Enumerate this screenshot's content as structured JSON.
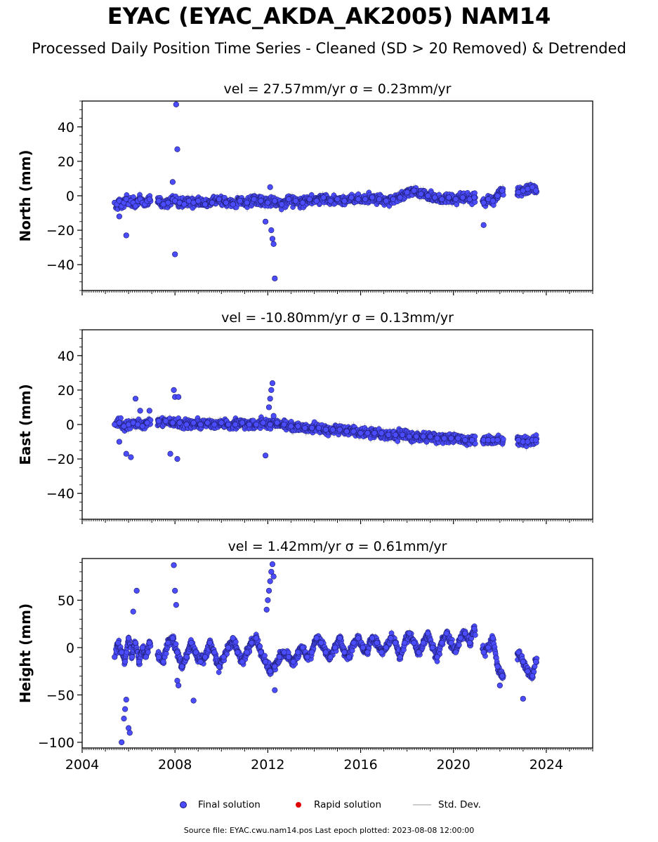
{
  "header": {
    "title": "EYAC (EYAC_AKDA_AK2005) NAM14",
    "subtitle": "Processed Daily Position Time Series - Cleaned (SD > 20 Removed) & Detrended"
  },
  "legend": {
    "final_label": "Final solution",
    "rapid_label": "Rapid solution",
    "std_label": "Std. Dev."
  },
  "footer": {
    "source": "Source file: EYAC.cwu.nam14.pos  Last epoch plotted: 2023-08-08 12:00:00"
  },
  "colors": {
    "final": "#4c4cff",
    "final_edge": "#1a1a66",
    "rapid": "#e00000",
    "std": "#cccccc"
  },
  "chart_data": [
    {
      "type": "scatter",
      "title": "vel = 27.57mm/yr   σ = 0.23mm/yr",
      "ylabel": "North (mm)",
      "xlim": [
        2004,
        2026
      ],
      "ylim": [
        -55,
        55
      ],
      "yticks": [
        -40,
        -20,
        0,
        20,
        40
      ],
      "xticks": [
        2004,
        2008,
        2012,
        2016,
        2020,
        2024
      ],
      "show_xtick_labels": false,
      "segments": [
        [
          2005.45,
          2006.95
        ],
        [
          2007.25,
          2020.95
        ],
        [
          2021.25,
          2022.15
        ],
        [
          2022.75,
          2023.6
        ]
      ],
      "series": [
        {
          "x": [
            2005.4,
            2005.5,
            2005.6,
            2005.7,
            2005.8,
            2005.9,
            2006.0,
            2006.1,
            2006.2,
            2006.3,
            2006.4,
            2006.5,
            2006.6,
            2006.7,
            2006.8,
            2006.9,
            2007.3,
            2007.5,
            2007.7,
            2007.9,
            2008.0,
            2008.2,
            2008.4,
            2008.6,
            2008.8,
            2009.0,
            2009.3,
            2009.6,
            2009.9,
            2010.2,
            2010.5,
            2010.8,
            2011.1,
            2011.4,
            2011.7,
            2012.0,
            2012.3,
            2012.6,
            2012.9,
            2013.2,
            2013.5,
            2013.8,
            2014.1,
            2014.4,
            2014.7,
            2015.0,
            2015.3,
            2015.6,
            2015.9,
            2016.2,
            2016.5,
            2016.8,
            2017.1,
            2017.4,
            2017.7,
            2018.0,
            2018.3,
            2018.6,
            2018.9,
            2019.2,
            2019.5,
            2019.8,
            2020.1,
            2020.4,
            2020.7,
            2020.9,
            2021.3,
            2021.5,
            2021.7,
            2021.9,
            2022.1,
            2022.8,
            2023.0,
            2023.2,
            2023.4,
            2023.55
          ],
          "y": [
            -4,
            -5,
            -3,
            -6,
            -4,
            -2,
            -5,
            -3,
            -4,
            -6,
            -3,
            -2,
            -4,
            -5,
            -3,
            -2,
            -3,
            -5,
            -4,
            -2,
            -3,
            -4,
            -5,
            -3,
            -4,
            -3,
            -5,
            -4,
            -2,
            -4,
            -5,
            -3,
            -4,
            -2,
            -3,
            -4,
            -3,
            -5,
            -2,
            -3,
            -4,
            -2,
            -3,
            -1,
            -3,
            -2,
            -3,
            -1,
            -2,
            -2,
            -1,
            -2,
            -3,
            -2,
            -1,
            2,
            3,
            1,
            0,
            -1,
            -2,
            -1,
            -2,
            -1,
            -2,
            -1,
            -4,
            -2,
            -3,
            0,
            3,
            2,
            3,
            4,
            5,
            3
          ]
        },
        {
          "x": [
            2005.6,
            2005.9,
            2007.9,
            2008.0,
            2008.05,
            2008.1,
            2011.9,
            2012.1,
            2012.15,
            2012.2,
            2012.25,
            2012.3,
            2021.3
          ],
          "y": [
            -12,
            -23,
            8,
            -34,
            53,
            27,
            -15,
            5,
            -20,
            -25,
            -28,
            -48,
            -17
          ]
        }
      ]
    },
    {
      "type": "scatter",
      "title": "vel = -10.80mm/yr   σ = 0.13mm/yr",
      "ylabel": "East (mm)",
      "xlim": [
        2004,
        2026
      ],
      "ylim": [
        -55,
        55
      ],
      "yticks": [
        -40,
        -20,
        0,
        20,
        40
      ],
      "xticks": [
        2004,
        2008,
        2012,
        2016,
        2020,
        2024
      ],
      "show_xtick_labels": false,
      "segments": [
        [
          2005.45,
          2006.95
        ],
        [
          2007.25,
          2020.95
        ],
        [
          2021.25,
          2022.15
        ],
        [
          2022.75,
          2023.6
        ]
      ],
      "series": [
        {
          "x": [
            2005.4,
            2005.6,
            2005.8,
            2006.0,
            2006.2,
            2006.4,
            2006.6,
            2006.8,
            2007.3,
            2007.6,
            2007.9,
            2008.2,
            2008.5,
            2008.8,
            2009.1,
            2009.4,
            2009.7,
            2010.0,
            2010.3,
            2010.6,
            2010.9,
            2011.2,
            2011.5,
            2011.8,
            2012.1,
            2012.4,
            2012.7,
            2013.0,
            2013.3,
            2013.6,
            2013.9,
            2014.2,
            2014.5,
            2014.8,
            2015.1,
            2015.4,
            2015.7,
            2016.0,
            2016.3,
            2016.6,
            2016.9,
            2017.2,
            2017.5,
            2017.8,
            2018.1,
            2018.4,
            2018.7,
            2019.0,
            2019.3,
            2019.6,
            2019.9,
            2020.2,
            2020.5,
            2020.8,
            2021.3,
            2021.5,
            2021.7,
            2021.9,
            2022.8,
            2023.0,
            2023.2,
            2023.4,
            2023.55
          ],
          "y": [
            0,
            1,
            -1,
            0,
            1,
            0,
            -1,
            1,
            2,
            2,
            1,
            1,
            0,
            1,
            0,
            1,
            0,
            1,
            0,
            0,
            1,
            0,
            0,
            1,
            0,
            1,
            0,
            -1,
            -1,
            -2,
            -2,
            -2,
            -3,
            -3,
            -3,
            -4,
            -4,
            -5,
            -5,
            -5,
            -5,
            -6,
            -6,
            -6,
            -7,
            -7,
            -7,
            -7,
            -8,
            -8,
            -8,
            -8,
            -9,
            -9,
            -9,
            -9,
            -9,
            -9,
            -9,
            -10,
            -10,
            -9,
            -9
          ]
        },
        {
          "x": [
            2005.6,
            2005.9,
            2006.1,
            2006.3,
            2006.5,
            2006.9,
            2007.8,
            2007.95,
            2008.0,
            2008.1,
            2008.15,
            2011.9,
            2012.05,
            2012.1,
            2012.15,
            2012.2,
            2012.25
          ],
          "y": [
            -10,
            -17,
            -19,
            15,
            8,
            8,
            -17,
            20,
            16,
            -20,
            16,
            -18,
            10,
            15,
            20,
            24,
            5
          ]
        }
      ]
    },
    {
      "type": "scatter",
      "title": "vel = 1.42mm/yr   σ = 0.61mm/yr",
      "ylabel": "Height (mm)",
      "xlim": [
        2004,
        2026
      ],
      "ylim": [
        -106,
        94
      ],
      "yticks": [
        -100,
        -50,
        0,
        50
      ],
      "xticks": [
        2004,
        2008,
        2012,
        2016,
        2020,
        2024
      ],
      "show_xtick_labels": true,
      "segments": [
        [
          2005.45,
          2006.95
        ],
        [
          2007.25,
          2020.95
        ],
        [
          2021.25,
          2022.15
        ],
        [
          2022.75,
          2023.6
        ]
      ],
      "series": [
        {
          "x": [
            2005.4,
            2005.55,
            2005.7,
            2005.85,
            2006.0,
            2006.15,
            2006.3,
            2006.45,
            2006.6,
            2006.75,
            2006.9,
            2007.3,
            2007.5,
            2007.7,
            2007.9,
            2008.1,
            2008.3,
            2008.5,
            2008.7,
            2008.9,
            2009.1,
            2009.3,
            2009.5,
            2009.7,
            2009.9,
            2010.1,
            2010.3,
            2010.5,
            2010.7,
            2010.9,
            2011.1,
            2011.3,
            2011.5,
            2011.7,
            2011.9,
            2012.1,
            2012.3,
            2012.5,
            2012.7,
            2012.9,
            2013.1,
            2013.3,
            2013.5,
            2013.7,
            2013.9,
            2014.1,
            2014.3,
            2014.5,
            2014.7,
            2014.9,
            2015.1,
            2015.3,
            2015.5,
            2015.7,
            2015.9,
            2016.1,
            2016.3,
            2016.5,
            2016.7,
            2016.9,
            2017.1,
            2017.3,
            2017.5,
            2017.7,
            2017.9,
            2018.1,
            2018.3,
            2018.5,
            2018.7,
            2018.9,
            2019.1,
            2019.3,
            2019.5,
            2019.7,
            2019.9,
            2020.1,
            2020.3,
            2020.5,
            2020.7,
            2020.9,
            2021.3,
            2021.5,
            2021.7,
            2021.9,
            2022.1,
            2022.8,
            2023.0,
            2023.2,
            2023.4,
            2023.55
          ],
          "y": [
            -10,
            5,
            -5,
            -15,
            10,
            -10,
            5,
            -15,
            0,
            -10,
            5,
            -10,
            -15,
            5,
            10,
            -5,
            -20,
            -10,
            5,
            -5,
            -15,
            -10,
            5,
            -5,
            -20,
            -10,
            0,
            10,
            -5,
            -15,
            -5,
            5,
            10,
            -5,
            -15,
            -25,
            -20,
            -10,
            -5,
            -10,
            -15,
            -5,
            0,
            -10,
            -5,
            10,
            5,
            -5,
            -10,
            0,
            10,
            -5,
            -10,
            5,
            10,
            0,
            -5,
            10,
            5,
            -5,
            0,
            10,
            5,
            -10,
            5,
            15,
            5,
            -5,
            5,
            15,
            0,
            -10,
            5,
            15,
            5,
            -5,
            10,
            15,
            5,
            20,
            -5,
            0,
            10,
            -20,
            -30,
            -5,
            -15,
            -25,
            -30,
            -15
          ]
        },
        {
          "x": [
            2005.7,
            2005.8,
            2005.85,
            2005.9,
            2006.0,
            2006.05,
            2006.2,
            2006.35,
            2007.95,
            2008.0,
            2008.05,
            2008.1,
            2008.15,
            2008.8,
            2011.95,
            2012.0,
            2012.05,
            2012.1,
            2012.15,
            2012.2,
            2012.25,
            2012.3,
            2022.0,
            2023.0
          ],
          "y": [
            -100,
            -75,
            -65,
            -55,
            -85,
            -90,
            38,
            60,
            87,
            60,
            45,
            -35,
            -40,
            -56,
            40,
            50,
            60,
            70,
            80,
            88,
            75,
            -45,
            -40,
            -54
          ]
        }
      ]
    }
  ]
}
